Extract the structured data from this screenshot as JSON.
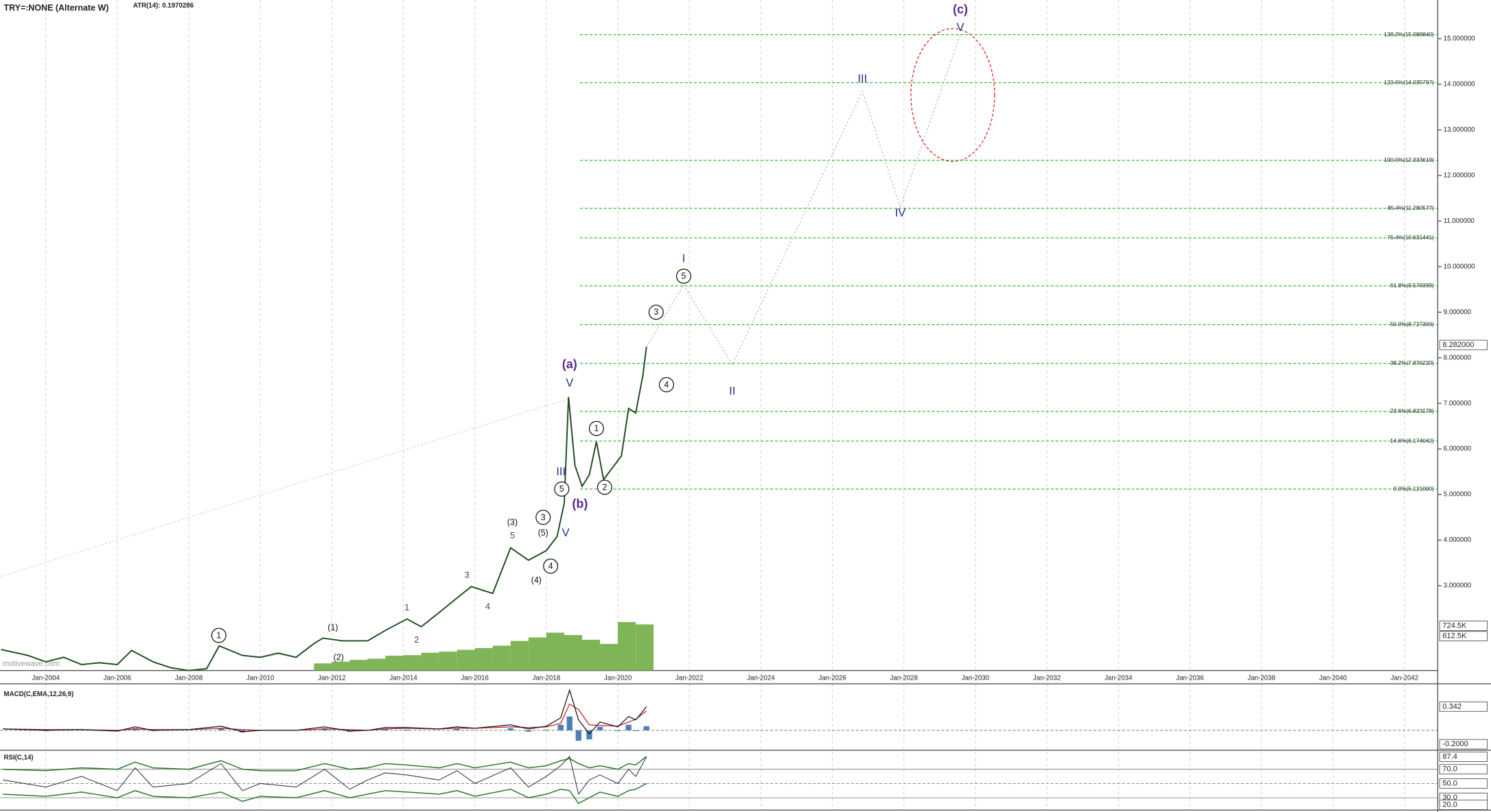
{
  "chart_data": {
    "type": "line",
    "title": "TRY=:NONE (Alternate W)",
    "subtitle": "ATR(14): 0.1970286",
    "watermark": "motivewave.com",
    "color": "#1d4a1d",
    "xlim": [
      2002.72,
      2042.93
    ],
    "ylim": [
      1.14,
      15.85
    ],
    "xticks": [
      {
        "value": 2004,
        "label": "Jan-2004"
      },
      {
        "value": 2006,
        "label": "Jan-2006"
      },
      {
        "value": 2008,
        "label": "Jan-2008"
      },
      {
        "value": 2010,
        "label": "Jan-2010"
      },
      {
        "value": 2012,
        "label": "Jan-2012"
      },
      {
        "value": 2014,
        "label": "Jan-2014"
      },
      {
        "value": 2016,
        "label": "Jan-2016"
      },
      {
        "value": 2018,
        "label": "Jan-2018"
      },
      {
        "value": 2020,
        "label": "Jan-2020"
      },
      {
        "value": 2022,
        "label": "Jan-2022"
      },
      {
        "value": 2024,
        "label": "Jan-2024"
      },
      {
        "value": 2026,
        "label": "Jan-2026"
      },
      {
        "value": 2028,
        "label": "Jan-2028"
      },
      {
        "value": 2030,
        "label": "Jan-2030"
      },
      {
        "value": 2032,
        "label": "Jan-2032"
      },
      {
        "value": 2034,
        "label": "Jan-2034"
      },
      {
        "value": 2036,
        "label": "Jan-2036"
      },
      {
        "value": 2038,
        "label": "Jan-2038"
      },
      {
        "value": 2040,
        "label": "Jan-2040"
      },
      {
        "value": 2042,
        "label": "Jan-2042"
      }
    ],
    "yticks": [
      {
        "value": 3,
        "label": "3.000000"
      },
      {
        "value": 4,
        "label": "4.000000"
      },
      {
        "value": 5,
        "label": "5.000000"
      },
      {
        "value": 6,
        "label": "6.000000"
      },
      {
        "value": 7,
        "label": "7.000000"
      },
      {
        "value": 8,
        "label": "8.000000"
      },
      {
        "value": 9,
        "label": "9.000000"
      },
      {
        "value": 10,
        "label": "10.000000"
      },
      {
        "value": 11,
        "label": "11.000000"
      },
      {
        "value": 12,
        "label": "12.000000"
      },
      {
        "value": 13,
        "label": "13.000000"
      },
      {
        "value": 14,
        "label": "14.000000"
      },
      {
        "value": 15,
        "label": "15.000000"
      }
    ],
    "last_price": {
      "value": 8.282,
      "label": "8.282000"
    },
    "x": [
      2002.75,
      2003.5,
      2004.0,
      2004.5,
      2005.0,
      2005.5,
      2006.0,
      2006.4,
      2007.0,
      2007.5,
      2008.0,
      2008.5,
      2008.85,
      2009.5,
      2010.0,
      2010.5,
      2011.0,
      2011.5,
      2011.75,
      2012.3,
      2013.0,
      2013.5,
      2014.1,
      2014.5,
      2015.0,
      2015.5,
      2015.9,
      2016.5,
      2017.0,
      2017.5,
      2018.0,
      2018.3,
      2018.5,
      2018.62,
      2018.8,
      2019.0,
      2019.2,
      2019.4,
      2019.6,
      2019.9,
      2020.1,
      2020.3,
      2020.5,
      2020.7,
      2020.8
    ],
    "values": [
      1.6,
      1.47,
      1.33,
      1.43,
      1.27,
      1.31,
      1.27,
      1.58,
      1.33,
      1.2,
      1.14,
      1.18,
      1.68,
      1.47,
      1.43,
      1.52,
      1.43,
      1.73,
      1.85,
      1.79,
      1.79,
      2.02,
      2.27,
      2.1,
      2.41,
      2.73,
      2.98,
      2.83,
      3.83,
      3.56,
      3.77,
      4.08,
      4.81,
      7.14,
      5.64,
      5.18,
      5.43,
      6.16,
      5.33,
      5.64,
      5.85,
      6.89,
      6.79,
      7.62,
      8.24
    ],
    "projection": {
      "color": "#bdbdbd",
      "x": [
        2020.8,
        2021.84,
        2023.2,
        2026.84,
        2027.9,
        2029.58
      ],
      "values": [
        8.24,
        9.6,
        7.85,
        13.85,
        11.3,
        15.1
      ]
    },
    "trendline": {
      "color": "#cfcfcf",
      "x": [
        2002.72,
        2018.6
      ],
      "values": [
        3.2,
        7.1
      ]
    },
    "fib_color": "#22b422",
    "fib_levels": [
      {
        "value": 15.08884,
        "label": "138.2%(15.088840)"
      },
      {
        "value": 14.035797,
        "label": "123.6%(14.035797)"
      },
      {
        "value": 12.333619,
        "label": "100.0%(12.333619)"
      },
      {
        "value": 11.280577,
        "label": "85.4%(11.280577)"
      },
      {
        "value": 10.631441,
        "label": "76.4%(10.631441)"
      },
      {
        "value": 9.578399,
        "label": "61.8%(9.578399)"
      },
      {
        "value": 8.727309,
        "label": "50.0%(8.727309)"
      },
      {
        "value": 7.87622,
        "label": "38.2%(7.876220)"
      },
      {
        "value": 6.823178,
        "label": "23.6%(6.823178)"
      },
      {
        "value": 6.174042,
        "label": "14.6%(6.174042)"
      },
      {
        "value": 5.121,
        "label": "0.0%(5.121000)"
      }
    ],
    "annotations": [
      {
        "text": "(c)",
        "x": 2029.58,
        "y": 15.64,
        "style": "purple"
      },
      {
        "text": "V",
        "x": 2029.58,
        "y": 15.25,
        "style": "navy"
      },
      {
        "text": "III",
        "x": 2026.84,
        "y": 14.12,
        "style": "navy"
      },
      {
        "text": "IV",
        "x": 2027.9,
        "y": 11.18,
        "style": "navy"
      },
      {
        "text": "I",
        "x": 2021.84,
        "y": 10.18,
        "style": "navy"
      },
      {
        "text": "5",
        "x": 2021.84,
        "y": 9.79,
        "style": "circle"
      },
      {
        "text": "3",
        "x": 2021.07,
        "y": 9.0,
        "style": "circle"
      },
      {
        "text": "4",
        "x": 2021.36,
        "y": 7.41,
        "style": "circle"
      },
      {
        "text": "II",
        "x": 2023.2,
        "y": 7.27,
        "style": "navy"
      },
      {
        "text": "(a)",
        "x": 2018.65,
        "y": 7.85,
        "style": "purple"
      },
      {
        "text": "V",
        "x": 2018.65,
        "y": 7.45,
        "style": "navy"
      },
      {
        "text": "1",
        "x": 2019.4,
        "y": 6.45,
        "style": "circle"
      },
      {
        "text": "2",
        "x": 2019.63,
        "y": 5.16,
        "style": "circle"
      },
      {
        "text": "III",
        "x": 2018.41,
        "y": 5.5,
        "style": "navy"
      },
      {
        "text": "5",
        "x": 2018.43,
        "y": 5.12,
        "style": "circle"
      },
      {
        "text": "(b)",
        "x": 2018.94,
        "y": 4.79,
        "style": "purple"
      },
      {
        "text": "V",
        "x": 2018.54,
        "y": 4.16,
        "style": "navy"
      },
      {
        "text": "3",
        "x": 2017.91,
        "y": 4.5,
        "style": "circle"
      },
      {
        "text": "(5)",
        "x": 2017.91,
        "y": 4.16,
        "style": "black"
      },
      {
        "text": "4",
        "x": 2018.12,
        "y": 3.43,
        "style": "circle"
      },
      {
        "text": "(4)",
        "x": 2017.72,
        "y": 3.12,
        "style": "black"
      },
      {
        "text": "(3)",
        "x": 2017.05,
        "y": 4.39,
        "style": "black"
      },
      {
        "text": "5",
        "x": 2017.05,
        "y": 4.1,
        "style": "grey"
      },
      {
        "text": "3",
        "x": 2015.78,
        "y": 3.23,
        "style": "grey"
      },
      {
        "text": "4",
        "x": 2016.36,
        "y": 2.54,
        "style": "grey"
      },
      {
        "text": "1",
        "x": 2014.1,
        "y": 2.52,
        "style": "grey"
      },
      {
        "text": "2",
        "x": 2014.37,
        "y": 1.81,
        "style": "grey"
      },
      {
        "text": "1",
        "x": 2008.84,
        "y": 1.91,
        "style": "circle"
      },
      {
        "text": "(1)",
        "x": 2012.03,
        "y": 2.08,
        "style": "black"
      },
      {
        "text": "(2)",
        "x": 2012.19,
        "y": 1.43,
        "style": "black"
      }
    ],
    "volume": {
      "color": "#6aa83a",
      "vlim": [
        0,
        900
      ],
      "ticks": [
        {
          "value": 724.5,
          "label": "724.5K"
        },
        {
          "value": 612.5,
          "label": "612.5K"
        }
      ],
      "x": [
        2011.75,
        2012.25,
        2012.75,
        2013.25,
        2013.75,
        2014.25,
        2014.75,
        2015.25,
        2015.75,
        2016.25,
        2016.75,
        2017.25,
        2017.75,
        2018.25,
        2018.75,
        2019.25,
        2019.75,
        2020.25,
        2020.75
      ],
      "values": [
        120,
        150,
        180,
        200,
        250,
        260,
        300,
        320,
        350,
        380,
        420,
        500,
        560,
        640,
        600,
        520,
        450,
        820,
        780
      ]
    },
    "macd": {
      "title": "MACD(C,EMA,12,26,9)",
      "ylim": [
        -0.26,
        0.644
      ],
      "ticks": [
        {
          "value": 0.342,
          "label": "0.342"
        },
        {
          "value": -0.2,
          "label": "-0.2000"
        }
      ],
      "x": [
        2002.8,
        2004,
        2005,
        2006,
        2006.5,
        2007,
        2008,
        2008.9,
        2009.5,
        2010,
        2011,
        2011.8,
        2012.5,
        2013,
        2013.5,
        2014.1,
        2015,
        2015.5,
        2016,
        2017,
        2017.5,
        2018,
        2018.4,
        2018.65,
        2018.9,
        2019.2,
        2019.5,
        2020,
        2020.3,
        2020.5,
        2020.8
      ],
      "macd": [
        0.02,
        0.0,
        0.01,
        -0.01,
        0.05,
        0.0,
        0.01,
        0.06,
        -0.02,
        0.0,
        0.0,
        0.05,
        -0.01,
        0.0,
        0.04,
        0.04,
        0.02,
        0.05,
        0.03,
        0.08,
        0.02,
        0.06,
        0.18,
        0.58,
        0.15,
        -0.05,
        0.12,
        0.05,
        0.2,
        0.15,
        0.34
      ],
      "signal": [
        0.02,
        0.01,
        0.01,
        0.0,
        0.02,
        0.01,
        0.01,
        0.03,
        0.01,
        0.0,
        0.0,
        0.02,
        0.01,
        0.0,
        0.02,
        0.03,
        0.02,
        0.03,
        0.03,
        0.05,
        0.04,
        0.05,
        0.1,
        0.38,
        0.3,
        0.08,
        0.07,
        0.06,
        0.12,
        0.16,
        0.28
      ],
      "histogram": [
        0,
        -0.01,
        0,
        -0.01,
        0.03,
        -0.01,
        0,
        0.03,
        -0.03,
        0,
        0,
        0.03,
        -0.02,
        0,
        0.02,
        0.01,
        0,
        0.02,
        0,
        0.03,
        -0.02,
        0.01,
        0.08,
        0.2,
        -0.15,
        -0.13,
        0.05,
        -0.01,
        0.08,
        -0.01,
        0.06
      ]
    },
    "rsi": {
      "title": "RSI(C,14)",
      "ylim": [
        14,
        94
      ],
      "ticks": [
        {
          "value": 87.4,
          "label": "87.4"
        },
        {
          "value": 70,
          "label": "70.0"
        },
        {
          "value": 50,
          "label": "50.0"
        },
        {
          "value": 30,
          "label": "30.0"
        },
        {
          "value": 20,
          "label": "20.0"
        }
      ],
      "x": [
        2002.8,
        2004,
        2005,
        2006,
        2006.5,
        2007,
        2008,
        2008.9,
        2009.5,
        2010,
        2011,
        2011.8,
        2012.5,
        2013,
        2013.5,
        2014.1,
        2015,
        2015.5,
        2016,
        2017,
        2017.5,
        2018,
        2018.4,
        2018.65,
        2018.9,
        2019.2,
        2019.5,
        2020,
        2020.3,
        2020.5,
        2020.8
      ],
      "values": [
        55,
        45,
        60,
        40,
        72,
        45,
        50,
        78,
        40,
        50,
        45,
        70,
        42,
        55,
        65,
        62,
        55,
        68,
        50,
        72,
        45,
        60,
        75,
        88,
        35,
        55,
        62,
        50,
        70,
        60,
        87.4
      ],
      "upper": [
        70,
        68,
        72,
        70,
        80,
        72,
        70,
        82,
        70,
        68,
        68,
        78,
        70,
        72,
        78,
        76,
        72,
        78,
        72,
        80,
        72,
        75,
        82,
        85,
        78,
        72,
        75,
        70,
        78,
        76,
        88
      ],
      "lower": [
        35,
        32,
        38,
        30,
        40,
        32,
        30,
        38,
        25,
        32,
        30,
        40,
        30,
        35,
        40,
        38,
        35,
        40,
        32,
        42,
        30,
        35,
        42,
        40,
        22,
        30,
        38,
        32,
        40,
        42,
        50
      ]
    }
  }
}
